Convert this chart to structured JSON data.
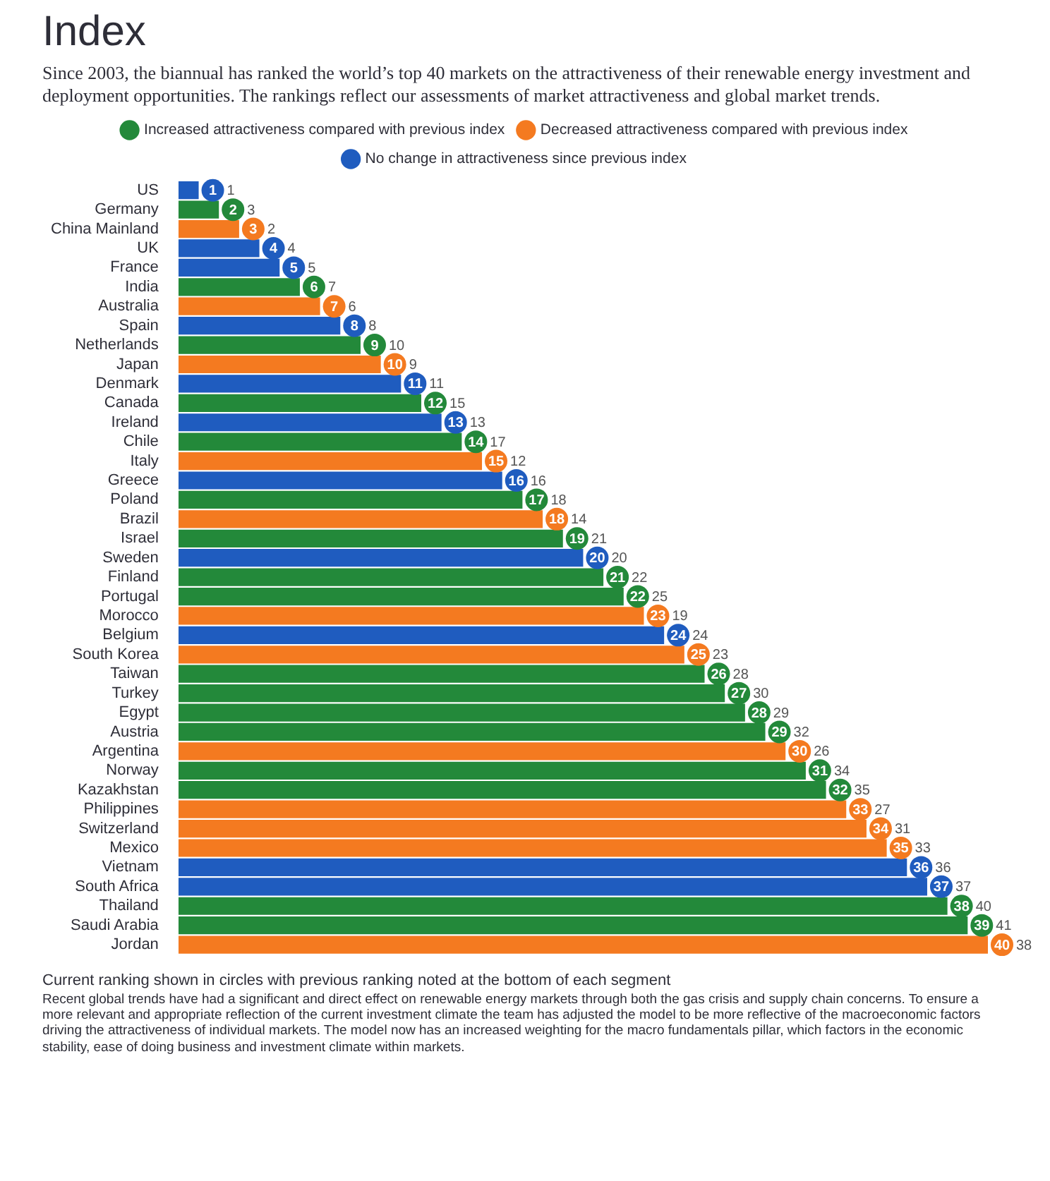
{
  "chart_data": {
    "type": "bar",
    "orientation": "horizontal",
    "stacked": true,
    "grid": false,
    "legend": "top",
    "data_labels": true,
    "tick_labels": "y",
    "title": "Index",
    "subtitle": "Since 2003, the biannual has ranked the world’s top 40 markets on the attractiveness of their renewable energy investment and deployment opportunities. The rankings reflect our assessments of market attractiveness and global market trends.",
    "categories": [
      "US",
      "Germany",
      "China Mainland",
      "UK",
      "France",
      "India",
      "Australia",
      "Spain",
      "Netherlands",
      "Japan",
      "Denmark",
      "Canada",
      "Ireland",
      "Chile",
      "Italy",
      "Greece",
      "Poland",
      "Brazil",
      "Israel",
      "Sweden",
      "Finland",
      "Portugal",
      "Morocco",
      "Belgium",
      "South Korea",
      "Taiwan",
      "Turkey",
      "Egypt",
      "Austria",
      "Argentina",
      "Norway",
      "Kazakhstan",
      "Philippines",
      "Switzerland",
      "Mexico",
      "Vietnam",
      "South Africa",
      "Thailand",
      "Saudi Arabia",
      "Jordan"
    ],
    "series": [
      {
        "name": "Increased attractiveness compared with previous index",
        "color": "#23893a",
        "values": [
          null,
          2,
          null,
          null,
          null,
          6,
          null,
          null,
          9,
          null,
          null,
          12,
          null,
          14,
          null,
          null,
          17,
          null,
          19,
          null,
          21,
          22,
          null,
          null,
          null,
          26,
          27,
          28,
          29,
          null,
          31,
          32,
          null,
          null,
          null,
          null,
          null,
          38,
          39,
          null
        ]
      },
      {
        "name": "Decreased attractiveness compared with previous index",
        "color": "#f47a20",
        "values": [
          null,
          null,
          3,
          null,
          null,
          null,
          7,
          null,
          null,
          10,
          null,
          null,
          null,
          null,
          15,
          null,
          null,
          18,
          null,
          null,
          null,
          null,
          23,
          null,
          25,
          null,
          null,
          null,
          null,
          30,
          null,
          null,
          33,
          34,
          35,
          null,
          null,
          null,
          null,
          40
        ]
      },
      {
        "name": "No change in attractiveness since previous index",
        "color": "#1f5cbf",
        "values": [
          1,
          null,
          null,
          4,
          5,
          null,
          null,
          8,
          null,
          null,
          11,
          null,
          13,
          null,
          null,
          16,
          null,
          null,
          null,
          20,
          null,
          null,
          null,
          24,
          null,
          null,
          null,
          null,
          null,
          null,
          null,
          null,
          null,
          null,
          null,
          36,
          37,
          null,
          null,
          null
        ]
      }
    ],
    "annotations": [
      "Current ranking shown in circles with previous ranking noted at the bottom of each segment",
      {
        "text": "1",
        "x": 1,
        "y": "US"
      },
      {
        "text": "3",
        "x": 2,
        "y": "Germany"
      },
      {
        "text": "2",
        "x": 3,
        "y": "China Mainland"
      },
      {
        "text": "4",
        "x": 4,
        "y": "UK"
      },
      {
        "text": "5",
        "x": 5,
        "y": "France"
      },
      {
        "text": "7",
        "x": 6,
        "y": "India"
      },
      {
        "text": "6",
        "x": 7,
        "y": "Australia"
      },
      {
        "text": "8",
        "x": 8,
        "y": "Spain"
      },
      {
        "text": "10",
        "x": 9,
        "y": "Netherlands"
      },
      {
        "text": "9",
        "x": 10,
        "y": "Japan"
      },
      {
        "text": "11",
        "x": 11,
        "y": "Denmark"
      },
      {
        "text": "15",
        "x": 12,
        "y": "Canada"
      },
      {
        "text": "13",
        "x": 13,
        "y": "Ireland"
      },
      {
        "text": "17",
        "x": 14,
        "y": "Chile"
      },
      {
        "text": "12",
        "x": 15,
        "y": "Italy"
      },
      {
        "text": "16",
        "x": 16,
        "y": "Greece"
      },
      {
        "text": "18",
        "x": 17,
        "y": "Poland"
      },
      {
        "text": "14",
        "x": 18,
        "y": "Brazil"
      },
      {
        "text": "21",
        "x": 19,
        "y": "Israel"
      },
      {
        "text": "20",
        "x": 20,
        "y": "Sweden"
      },
      {
        "text": "22",
        "x": 21,
        "y": "Finland"
      },
      {
        "text": "25",
        "x": 22,
        "y": "Portugal"
      },
      {
        "text": "19",
        "x": 23,
        "y": "Morocco"
      },
      {
        "text": "24",
        "x": 24,
        "y": "Belgium"
      },
      {
        "text": "23",
        "x": 25,
        "y": "South Korea"
      },
      {
        "text": "28",
        "x": 26,
        "y": "Taiwan"
      },
      {
        "text": "30",
        "x": 27,
        "y": "Turkey"
      },
      {
        "text": "29",
        "x": 28,
        "y": "Egypt"
      },
      {
        "text": "32",
        "x": 29,
        "y": "Austria"
      },
      {
        "text": "26",
        "x": 30,
        "y": "Argentina"
      },
      {
        "text": "34",
        "x": 31,
        "y": "Norway"
      },
      {
        "text": "35",
        "x": 32,
        "y": "Kazakhstan"
      },
      {
        "text": "27",
        "x": 33,
        "y": "Philippines"
      },
      {
        "text": "31",
        "x": 34,
        "y": "Switzerland"
      },
      {
        "text": "33",
        "x": 35,
        "y": "Mexico"
      },
      {
        "text": "36",
        "x": 36,
        "y": "Vietnam"
      },
      {
        "text": "37",
        "x": 37,
        "y": "South Africa"
      },
      {
        "text": "40",
        "x": 38,
        "y": "Thailand"
      },
      {
        "text": "41",
        "x": 39,
        "y": "Saudi Arabia"
      },
      {
        "text": "38",
        "x": 40,
        "y": "Jordan"
      },
      "Recent global trends have had a significant and direct effect on renewable energy markets through both the gas crisis and supply chain concerns. To ensure a more relevant and appropriate reflection of the current investment climate the team has adjusted the model to be more reflective of the macroeconomic factors driving the attractiveness of individual markets. The model now has an increased weighting for the macro fundamentals pillar, which factors in the economic stability, ease of doing business and investment climate within markets."
    ]
  }
}
